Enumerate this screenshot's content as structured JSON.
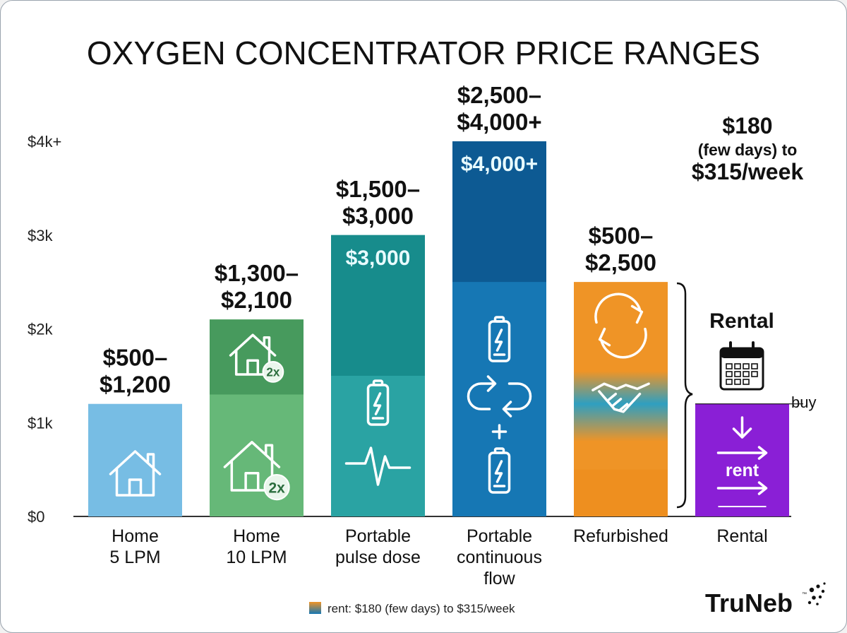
{
  "chart_data": {
    "type": "bar",
    "title": "OXYGEN CONCENTRATOR PRICE RANGES",
    "ylim": [
      0,
      4000
    ],
    "y_ticks": [
      {
        "value": 0,
        "label": "$0"
      },
      {
        "value": 1000,
        "label": "$1k"
      },
      {
        "value": 2000,
        "label": "$2k"
      },
      {
        "value": 3000,
        "label": "$3k"
      },
      {
        "value": 4000,
        "label": "$4k+"
      }
    ],
    "grid": false,
    "bars": [
      {
        "category": [
          "Home",
          "5 LPM"
        ],
        "low": 500,
        "high": 1200,
        "range_label": [
          "$500–",
          "$1,200"
        ],
        "top_label": "",
        "color": "#77bde4",
        "top_color": "#77bde4",
        "icons": [
          "house-icon"
        ]
      },
      {
        "category": [
          "Home",
          "10 LPM"
        ],
        "low": 1300,
        "high": 2100,
        "range_label": [
          "$1,300–",
          "$2,100"
        ],
        "top_label": "",
        "color": "#66b878",
        "top_color": "#479a5d",
        "icons": [
          "house-2x-icon",
          "house-2x-icon"
        ]
      },
      {
        "category": [
          "Portable",
          "pulse dose"
        ],
        "low": 1500,
        "high": 3000,
        "range_label": [
          "$1,500–",
          "$3,000"
        ],
        "top_label": "$3,000",
        "color": "#2aa3a3",
        "top_color": "#178c8c",
        "icons": [
          "battery-icon",
          "pulse-icon"
        ]
      },
      {
        "category": [
          "Portable",
          "continuous",
          "flow"
        ],
        "low": 2500,
        "high": 4000,
        "range_label": [
          "$2,500–",
          "$4,000+"
        ],
        "top_label": "$4,000+",
        "color": "#1677b4",
        "top_color": "#0d5a93",
        "icons": [
          "battery-icon",
          "cycle-icon",
          "plus-icon",
          "battery-icon"
        ]
      },
      {
        "category": [
          "Refurbished"
        ],
        "low": 500,
        "high": 2500,
        "range_label": [
          "$500–",
          "$2,500"
        ],
        "top_label": "",
        "color": "#ef9426",
        "top_color": "#ef9426",
        "icons": [
          "refresh-icon",
          "handshake-icon"
        ]
      },
      {
        "category": [
          "Rental"
        ],
        "low": 180,
        "high": 1200,
        "range_label": [],
        "top_label": "",
        "color": "#8a1fd6",
        "top_color": "#8a1fd6",
        "icons": [
          "calendar-icon",
          "rent-arrows-icon"
        ]
      }
    ],
    "annotations": {
      "rental_price": [
        "$180",
        "(few days) to",
        "$315/week"
      ],
      "rental_header": "Rental",
      "buy_label": "buy",
      "rent_label": "rent"
    },
    "legend": {
      "placement": "bottom-center",
      "text": "rent: $180 (few days) to $315/week",
      "swatch_colors": [
        "#ef9426",
        "#1677b4"
      ]
    }
  },
  "brand": {
    "logo_text": "TruNeb",
    "trademark": "™"
  }
}
